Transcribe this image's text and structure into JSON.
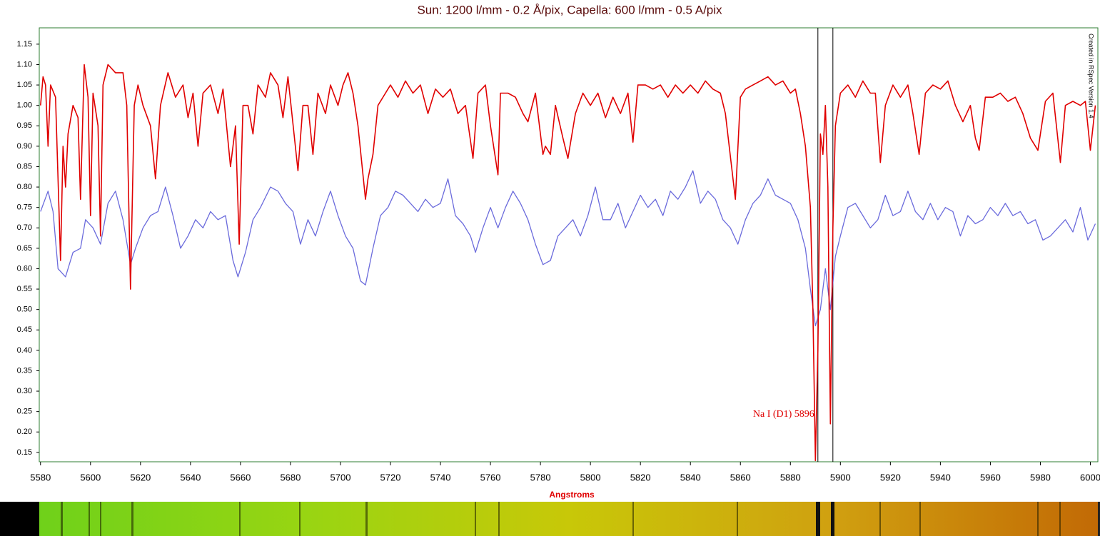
{
  "chart_data": {
    "type": "line",
    "title": "Sun: 1200 l/mm -  0.2 Å/pix, Capella: 600 l/mm - 0.5 A/pix",
    "x_label": "Angstroms",
    "watermark": "Created in RSpec Version 1.4",
    "annotation": "Na I (D1) 5896",
    "reference_lines": [
      5891,
      5897
    ],
    "xlim": [
      5579.5,
      6003
    ],
    "ylim": [
      0.127,
      1.19
    ],
    "xticks": [
      5580,
      5600,
      5620,
      5640,
      5660,
      5680,
      5700,
      5720,
      5740,
      5760,
      5780,
      5800,
      5820,
      5840,
      5860,
      5880,
      5900,
      5920,
      5940,
      5960,
      5980,
      6000
    ],
    "yticks": [
      0.15,
      {
        "value": 0.2,
        "label": "0.20"
      },
      0.25,
      {
        "value": 0.3,
        "label": "0.30"
      },
      0.35,
      {
        "value": 0.4,
        "label": "0.40"
      },
      0.45,
      {
        "value": 0.5,
        "label": "0.50"
      },
      0.55,
      {
        "value": 0.6,
        "label": "0.60"
      },
      0.65,
      {
        "value": 0.7,
        "label": "0.70"
      },
      0.75,
      {
        "value": 0.8,
        "label": "0.80"
      },
      0.85,
      {
        "value": 0.9,
        "label": "0.90"
      },
      0.95,
      {
        "value": 1.0,
        "label": "1.00"
      },
      1.05,
      {
        "value": 1.1,
        "label": "1.10"
      },
      1.15
    ],
    "series": [
      {
        "color": "#e00000",
        "x": [
          5580,
          5581,
          5582,
          5583,
          5584,
          5586,
          5588,
          5589,
          5590,
          5591,
          5593,
          5595,
          5596,
          5597.5,
          5599,
          5600,
          5601,
          5603,
          5604,
          5605,
          5607,
          5610,
          5613,
          5614.5,
          5616,
          5617.5,
          5619,
          5621,
          5624,
          5626,
          5628,
          5631,
          5634,
          5637,
          5639,
          5641,
          5643,
          5645,
          5648,
          5651,
          5653,
          5656,
          5658,
          5659.5,
          5661,
          5663,
          5665,
          5667,
          5670,
          5672,
          5675,
          5677,
          5679,
          5683,
          5685,
          5687,
          5689,
          5691,
          5694,
          5696,
          5699,
          5701,
          5703,
          5705,
          5707,
          5710,
          5711,
          5713,
          5715,
          5718,
          5720,
          5723,
          5726,
          5729,
          5732,
          5735,
          5738,
          5741,
          5744,
          5747,
          5750,
          5753,
          5755,
          5758,
          5760,
          5763,
          5764,
          5767,
          5770,
          5773,
          5775,
          5778,
          5781,
          5782,
          5784,
          5786,
          5789,
          5791,
          5794,
          5797,
          5800,
          5803,
          5806,
          5809,
          5812,
          5815,
          5817,
          5819,
          5822,
          5825,
          5828,
          5831,
          5834,
          5837,
          5840,
          5843,
          5846,
          5849,
          5852,
          5854,
          5858,
          5860,
          5862,
          5865,
          5868,
          5871,
          5874,
          5877,
          5880,
          5882,
          5884,
          5886,
          5888,
          5889,
          5890,
          5891,
          5892,
          5893,
          5894,
          5895,
          5896,
          5897,
          5898,
          5900,
          5903,
          5906,
          5909,
          5912,
          5914,
          5916,
          5918,
          5921,
          5924,
          5927,
          5929,
          5931.5,
          5934,
          5937,
          5940,
          5943,
          5946,
          5949,
          5952,
          5954,
          5955.5,
          5958,
          5961,
          5964,
          5967,
          5970,
          5973,
          5976,
          5979,
          5982,
          5985,
          5988,
          5990,
          5993,
          5996,
          5998,
          6000,
          6002
        ],
        "values": [
          1.0,
          1.07,
          1.05,
          0.9,
          1.05,
          1.02,
          0.62,
          0.9,
          0.8,
          0.93,
          1.0,
          0.97,
          0.77,
          1.1,
          1.02,
          0.73,
          1.03,
          0.95,
          0.68,
          1.05,
          1.1,
          1.08,
          1.08,
          1.0,
          0.55,
          1.0,
          1.05,
          1.0,
          0.95,
          0.82,
          1.0,
          1.08,
          1.02,
          1.05,
          0.97,
          1.03,
          0.9,
          1.03,
          1.05,
          0.98,
          1.04,
          0.85,
          0.95,
          0.66,
          1.0,
          1.0,
          0.93,
          1.05,
          1.02,
          1.08,
          1.05,
          0.97,
          1.07,
          0.84,
          1.0,
          1.0,
          0.88,
          1.03,
          0.98,
          1.05,
          1.0,
          1.05,
          1.08,
          1.03,
          0.95,
          0.77,
          0.82,
          0.88,
          1.0,
          1.03,
          1.05,
          1.02,
          1.06,
          1.03,
          1.05,
          0.98,
          1.04,
          1.02,
          1.04,
          0.98,
          1.0,
          0.87,
          1.03,
          1.05,
          0.95,
          0.83,
          1.03,
          1.03,
          1.02,
          0.98,
          0.96,
          1.03,
          0.88,
          0.9,
          0.88,
          1.0,
          0.92,
          0.87,
          0.98,
          1.03,
          1.0,
          1.03,
          0.97,
          1.02,
          0.98,
          1.03,
          0.91,
          1.05,
          1.05,
          1.04,
          1.05,
          1.02,
          1.05,
          1.03,
          1.05,
          1.03,
          1.06,
          1.04,
          1.03,
          0.98,
          0.77,
          1.02,
          1.04,
          1.05,
          1.06,
          1.07,
          1.05,
          1.06,
          1.03,
          1.04,
          0.98,
          0.9,
          0.75,
          0.5,
          0.13,
          0.4,
          0.93,
          0.88,
          1.0,
          0.8,
          0.22,
          0.7,
          0.95,
          1.03,
          1.05,
          1.02,
          1.06,
          1.03,
          1.03,
          0.86,
          1.0,
          1.05,
          1.02,
          1.05,
          0.98,
          0.88,
          1.03,
          1.05,
          1.04,
          1.06,
          1.0,
          0.96,
          1.0,
          0.92,
          0.89,
          1.02,
          1.02,
          1.03,
          1.01,
          1.02,
          0.98,
          0.92,
          0.89,
          1.01,
          1.03,
          0.86,
          1.0,
          1.01,
          1.0,
          1.01,
          0.89,
          1.0
        ]
      },
      {
        "color": "#6b6bdc",
        "x": [
          5580,
          5583,
          5585,
          5587,
          5590,
          5593,
          5596,
          5598,
          5601,
          5604,
          5607,
          5610,
          5613,
          5616,
          5618,
          5621,
          5624,
          5627,
          5630,
          5633,
          5636,
          5639,
          5642,
          5645,
          5648,
          5651,
          5654,
          5657,
          5659,
          5662,
          5665,
          5668,
          5672,
          5675,
          5678,
          5681,
          5684,
          5687,
          5690,
          5693,
          5696,
          5699,
          5702,
          5705,
          5708,
          5710,
          5713,
          5716,
          5719,
          5722,
          5725,
          5728,
          5731,
          5734,
          5737,
          5740,
          5743,
          5746,
          5749,
          5752,
          5754,
          5757,
          5760,
          5763,
          5766,
          5769,
          5772,
          5775,
          5778,
          5781,
          5784,
          5787,
          5790,
          5793,
          5796,
          5799,
          5802,
          5805,
          5808,
          5811,
          5814,
          5817,
          5820,
          5823,
          5826,
          5829,
          5832,
          5835,
          5838,
          5841,
          5844,
          5847,
          5850,
          5853,
          5856,
          5859,
          5862,
          5865,
          5868,
          5871,
          5874,
          5877,
          5880,
          5883,
          5886,
          5888,
          5890,
          5892,
          5894,
          5896,
          5898,
          5900,
          5903,
          5906,
          5909,
          5912,
          5915,
          5918,
          5921,
          5924,
          5927,
          5930,
          5933,
          5936,
          5939,
          5942,
          5945,
          5948,
          5951,
          5954,
          5957,
          5960,
          5963,
          5966,
          5969,
          5972,
          5975,
          5978,
          5981,
          5984,
          5987,
          5990,
          5993,
          5996,
          5999,
          6002
        ],
        "values": [
          0.74,
          0.79,
          0.74,
          0.6,
          0.58,
          0.64,
          0.65,
          0.72,
          0.7,
          0.66,
          0.76,
          0.79,
          0.72,
          0.61,
          0.65,
          0.7,
          0.73,
          0.74,
          0.8,
          0.73,
          0.65,
          0.68,
          0.72,
          0.7,
          0.74,
          0.72,
          0.73,
          0.62,
          0.58,
          0.64,
          0.72,
          0.75,
          0.8,
          0.79,
          0.76,
          0.74,
          0.66,
          0.72,
          0.68,
          0.74,
          0.79,
          0.73,
          0.68,
          0.65,
          0.57,
          0.56,
          0.65,
          0.73,
          0.75,
          0.79,
          0.78,
          0.76,
          0.74,
          0.77,
          0.75,
          0.76,
          0.82,
          0.73,
          0.71,
          0.68,
          0.64,
          0.7,
          0.75,
          0.7,
          0.75,
          0.79,
          0.76,
          0.72,
          0.66,
          0.61,
          0.62,
          0.68,
          0.7,
          0.72,
          0.68,
          0.73,
          0.8,
          0.72,
          0.72,
          0.76,
          0.7,
          0.74,
          0.78,
          0.75,
          0.77,
          0.73,
          0.79,
          0.77,
          0.8,
          0.84,
          0.76,
          0.79,
          0.77,
          0.72,
          0.7,
          0.66,
          0.72,
          0.76,
          0.78,
          0.82,
          0.78,
          0.77,
          0.76,
          0.72,
          0.65,
          0.55,
          0.46,
          0.5,
          0.6,
          0.5,
          0.63,
          0.68,
          0.75,
          0.76,
          0.73,
          0.7,
          0.72,
          0.78,
          0.73,
          0.74,
          0.79,
          0.74,
          0.72,
          0.76,
          0.72,
          0.75,
          0.74,
          0.68,
          0.73,
          0.71,
          0.72,
          0.75,
          0.73,
          0.76,
          0.73,
          0.74,
          0.71,
          0.72,
          0.67,
          0.68,
          0.7,
          0.72,
          0.69,
          0.75,
          0.67,
          0.71
        ]
      }
    ]
  }
}
